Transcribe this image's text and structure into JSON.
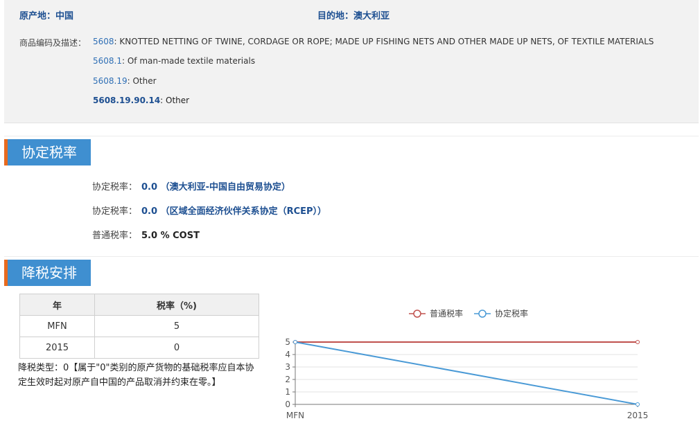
{
  "header": {
    "origin_label": "原产地：",
    "origin_value": "中国",
    "dest_label": "目的地：",
    "dest_value": "澳大利亚",
    "hs_label": "商品编码及描述：",
    "hs_lines": [
      {
        "code": "5608",
        "desc": ": KNOTTED NETTING OF TWINE, CORDAGE OR ROPE; MADE UP FISHING NETS AND OTHER MADE UP NETS, OF TEXTILE MATERIALS"
      },
      {
        "code": "5608.1",
        "desc": ": Of man-made textile materials"
      },
      {
        "code": "5608.19",
        "desc": ": Other"
      },
      {
        "code": "5608.19.90.14",
        "desc": ": Other"
      }
    ]
  },
  "section_rates": {
    "title": "协定税率",
    "rows": [
      {
        "label": "协定税率：",
        "value": "0.0 （澳大利亚-中国自由贸易协定）"
      },
      {
        "label": "协定税率：",
        "value": "0.0 （区域全面经济伙伴关系协定（RCEP））"
      },
      {
        "label": "普通税率：",
        "value": "5.0 % COST"
      }
    ]
  },
  "section_schedule": {
    "title": "降税安排",
    "table": {
      "headers": [
        "年",
        "税率（%)"
      ],
      "rows": [
        [
          "MFN",
          "5"
        ],
        [
          "2015",
          "0"
        ]
      ]
    },
    "cut_type": "降税类型：0【属于\"0\"类别的原产货物的基础税率应自本协定生效时起对原产自中国的产品取消并约束在零。】"
  },
  "chart_data": {
    "type": "line",
    "categories": [
      "MFN",
      "2015"
    ],
    "series": [
      {
        "name": "普通税率",
        "values": [
          5,
          5
        ],
        "color": "#c0504d"
      },
      {
        "name": "协定税率",
        "values": [
          5,
          0
        ],
        "color": "#4a9ad6"
      }
    ],
    "ylim": [
      0,
      5
    ],
    "yticks": [
      0,
      1,
      2,
      3,
      4,
      5
    ],
    "legend": "top-center",
    "grid": true
  }
}
